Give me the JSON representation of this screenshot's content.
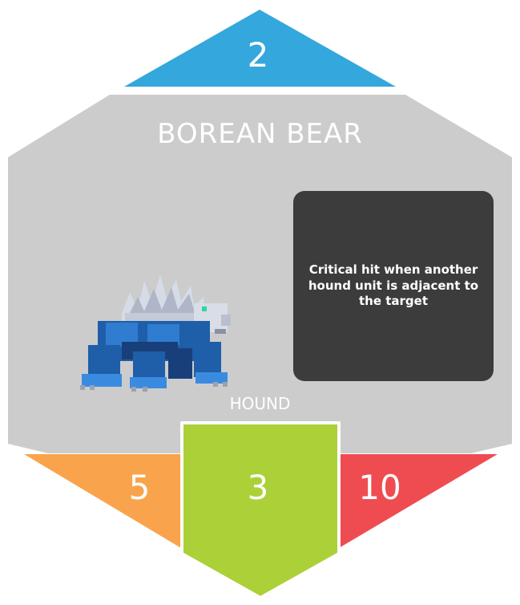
{
  "card": {
    "name": "BOREAN BEAR",
    "cost": "2",
    "ability": "Critical hit when another hound unit is adjacent to the target",
    "unit_type": "HOUND",
    "stats": {
      "left": "5",
      "center": "3",
      "right": "10"
    },
    "creature_icon": "blue-ice-bear-sprite"
  },
  "colors": {
    "body": "#cccccc",
    "cost": "#34a7dc",
    "left_stat": "#f9a44c",
    "center_stat": "#acd038",
    "right_stat": "#ef4c52",
    "ability_box": "#3c3c3c"
  }
}
